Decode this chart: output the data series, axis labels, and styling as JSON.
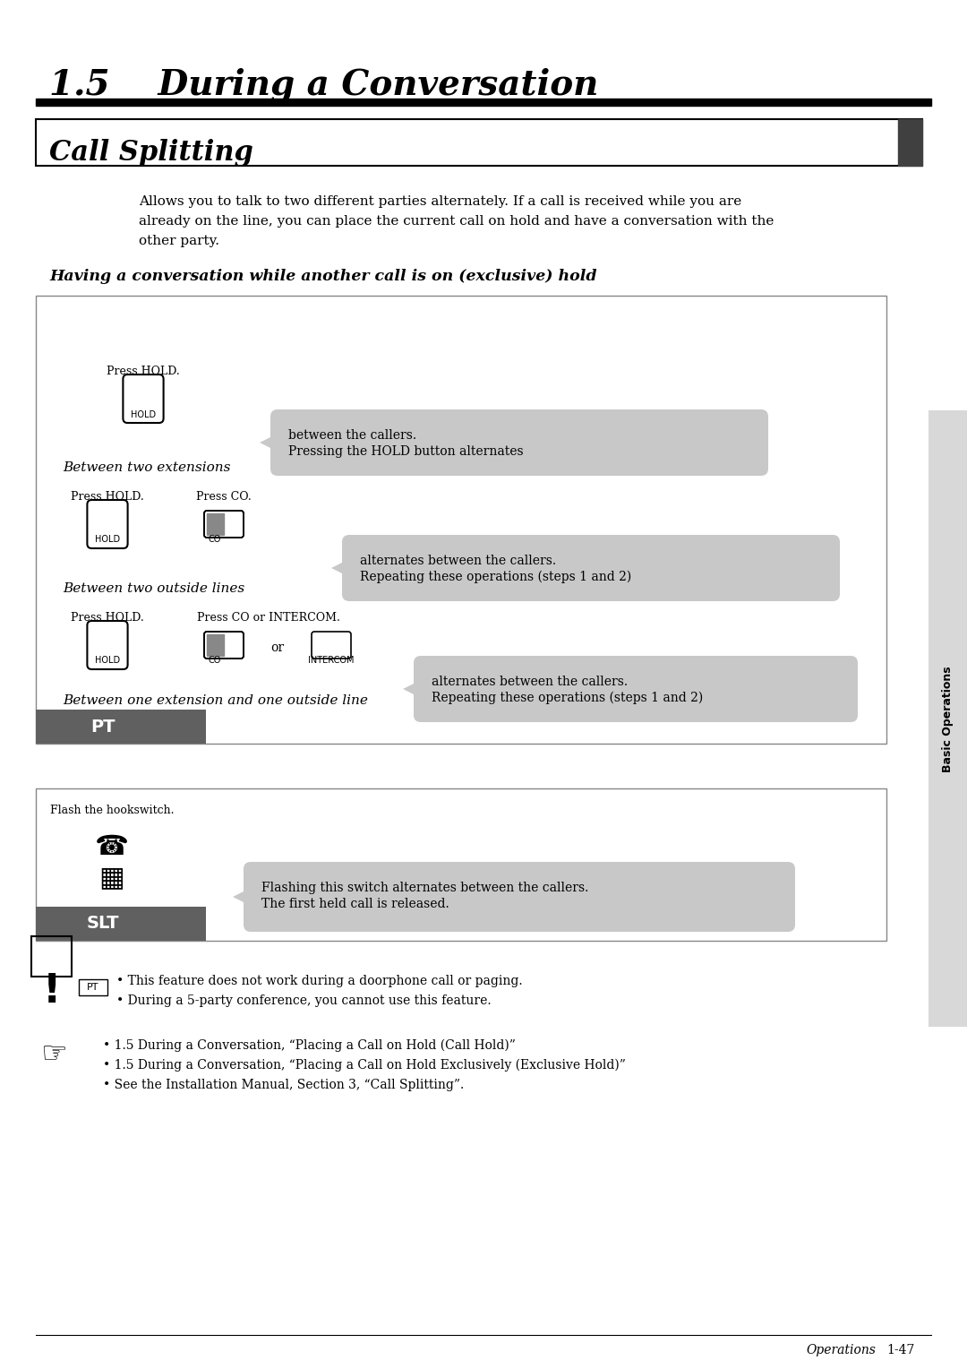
{
  "title": "1.5    During a Conversation",
  "section_title": "Call Splitting",
  "description": "Allows you to talk to two different parties alternately. If a call is received while you are\nalready on the line, you can place the current call on hold and have a conversation with the\nother party.",
  "subheading": "Having a conversation while another call is on (exclusive) hold",
  "pt_label": "PT",
  "slt_label": "SLT",
  "between_ext_outside": "Between one extension and one outside line",
  "between_two_outside": "Between two outside lines",
  "between_two_ext": "Between two extensions",
  "note1_line1": "Repeating these operations (steps 1 and 2)",
  "note1_line2": "alternates between the callers.",
  "note2_line1": "Repeating these operations (steps 1 and 2)",
  "note2_line2": "alternates between the callers.",
  "note3_line1": "Pressing the HOLD button alternates",
  "note3_line2": "between the callers.",
  "slt_note1": "The first held call is released.",
  "slt_note2": "Flashing this switch alternates between the callers.",
  "press_hold": "Press HOLD.",
  "press_co_intercom": "Press CO or INTERCOM.",
  "press_co": "Press CO.",
  "press_hold2": "Press HOLD.",
  "press_hold3": "Press HOLD.",
  "flash_hookswitch": "Flash the hookswitch.",
  "warning_line1": "This feature does not work during a doorphone call or paging.",
  "warning_line2": "During a 5-party conference, you cannot use this feature.",
  "ref1": "1.5 During a Conversation, “Placing a Call on Hold (Call Hold)”",
  "ref2": "1.5 During a Conversation, “Placing a Call on Hold Exclusively (Exclusive Hold)”",
  "ref3": "See the Installation Manual, Section 3, “Call Splitting”.",
  "footer_left": "Operations",
  "footer_right": "1-47",
  "tab_text": "Basic Operations",
  "bg_color": "#ffffff",
  "pt_bg": "#606060",
  "slt_bg": "#606060",
  "box_bg": "#c8c8c8",
  "section_bg": "#d0d0d0"
}
